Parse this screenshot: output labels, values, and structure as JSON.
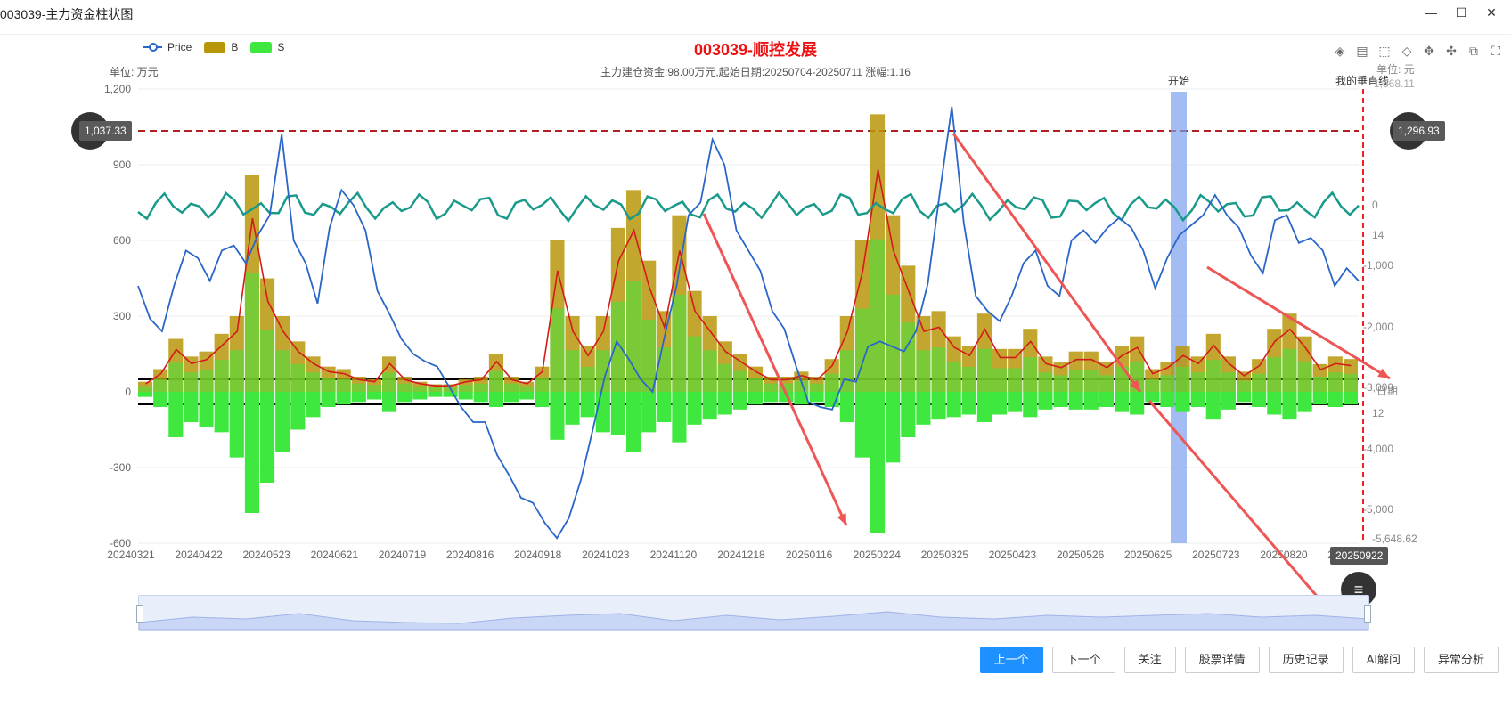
{
  "window": {
    "title": "003039-主力资金柱状图",
    "controls": [
      "minimize",
      "maximize",
      "close"
    ]
  },
  "legend": [
    {
      "label": "Price",
      "color": "#2a66c8"
    },
    {
      "label": "B",
      "color": "#b8960a"
    },
    {
      "label": "S",
      "color": "#3ee83e"
    }
  ],
  "header": {
    "title": "003039-顺控发展",
    "subtitle": "主力建仓资金:98.00万元,起始日期:20250704-20250711 涨幅:1.16",
    "unit_left": "单位: 万元",
    "unit_right": "单位: 元"
  },
  "toolbox": [
    "layers-icon",
    "doc-icon",
    "select-icon",
    "lasso-icon",
    "drag-icon",
    "move-icon",
    "restore-icon",
    "fullscreen-icon"
  ],
  "pins": {
    "left": "1,037.33",
    "right": "1,296.93"
  },
  "markers": {
    "start_label": "开始",
    "vline_label": "我的垂直线",
    "date_badge": "20250922",
    "date_axis_label": "日期"
  },
  "right_axis_labels": {
    "top_value": "1,668.11",
    "right_0": "0",
    "right_14": "14",
    "right_m1000": "-1,000",
    "right_m2000": "-2,000",
    "right_m3000": "-3,000",
    "right_12": "12",
    "right_m4000": "-4,000",
    "right_m5000": "-5,000",
    "right_bottom": "-5,648.62"
  },
  "chart_data": {
    "type": "line",
    "title": "003039-顺控发展",
    "ylabel": "万元",
    "ylim": [
      -600,
      1200
    ],
    "y_ticks": [
      "1,200",
      "900",
      "600",
      "300",
      "0",
      "-300",
      "-600"
    ],
    "x_ticks": [
      "20240321",
      "20240422",
      "20240523",
      "20240621",
      "20240719",
      "20240816",
      "20240918",
      "20241023",
      "20241120",
      "20241218",
      "20250116",
      "20250224",
      "20250325",
      "20250423",
      "20250526",
      "20250625",
      "20250723",
      "20250820",
      "20250922"
    ],
    "series": [
      {
        "name": "Price",
        "values": [
          420,
          290,
          240,
          420,
          560,
          530,
          440,
          560,
          580,
          510,
          620,
          700,
          1020,
          600,
          510,
          350,
          650,
          800,
          740,
          640,
          400,
          310,
          210,
          150,
          120,
          100,
          20,
          -60,
          -120,
          -120,
          -250,
          -330,
          -420,
          -440,
          -520,
          -580,
          -500,
          -350,
          -150,
          60,
          200,
          130,
          50,
          0,
          220,
          420,
          700,
          750,
          1000,
          900,
          640,
          560,
          480,
          320,
          250,
          100,
          -40,
          -60,
          -70,
          50,
          40,
          180,
          200,
          180,
          160,
          240,
          430,
          790,
          1130,
          670,
          380,
          320,
          280,
          380,
          510,
          560,
          420,
          380,
          600,
          640,
          590,
          650,
          690,
          650,
          560,
          410,
          530,
          620,
          660,
          700,
          780,
          700,
          650,
          540,
          470,
          680,
          700,
          590,
          610,
          560,
          420,
          490,
          440
        ]
      },
      {
        "name": "B",
        "values": [
          40,
          90,
          210,
          140,
          160,
          230,
          300,
          860,
          450,
          300,
          200,
          140,
          100,
          90,
          60,
          50,
          140,
          60,
          40,
          30,
          30,
          50,
          60,
          150,
          60,
          40,
          100,
          600,
          300,
          180,
          300,
          650,
          800,
          520,
          320,
          700,
          400,
          300,
          200,
          150,
          100,
          60,
          60,
          80,
          60,
          130,
          300,
          600,
          1100,
          700,
          500,
          300,
          320,
          220,
          180,
          310,
          170,
          170,
          250,
          140,
          120,
          160,
          160,
          120,
          180,
          220,
          90,
          120,
          180,
          140,
          230,
          140,
          80,
          130,
          250,
          310,
          220,
          110,
          140,
          130
        ]
      },
      {
        "name": "S",
        "values": [
          -20,
          -60,
          -180,
          -120,
          -140,
          -160,
          -260,
          -480,
          -360,
          -240,
          -150,
          -100,
          -60,
          -50,
          -40,
          -30,
          -80,
          -40,
          -30,
          -20,
          -20,
          -30,
          -40,
          -60,
          -40,
          -30,
          -60,
          -190,
          -130,
          -100,
          -160,
          -170,
          -240,
          -160,
          -120,
          -200,
          -130,
          -110,
          -90,
          -70,
          -50,
          -40,
          -40,
          -50,
          -40,
          -60,
          -120,
          -260,
          -560,
          -280,
          -180,
          -130,
          -110,
          -100,
          -90,
          -120,
          -90,
          -80,
          -100,
          -70,
          -60,
          -70,
          -70,
          -60,
          -80,
          -90,
          -40,
          -60,
          -80,
          -60,
          -110,
          -70,
          -40,
          -60,
          -90,
          -110,
          -80,
          -50,
          -60,
          -50
        ]
      }
    ],
    "reference_lines": [
      {
        "label": "1,037.33",
        "value": 1037.33
      },
      {
        "label": "1,296.93",
        "value": 1296.93
      }
    ],
    "annotations": [
      "开始",
      "我的垂直线",
      "20250922"
    ]
  },
  "buttons": {
    "prev": "上一个",
    "next": "下一个",
    "follow": "关注",
    "detail": "股票详情",
    "history": "历史记录",
    "ai": "AI解问",
    "anomaly": "异常分析"
  }
}
